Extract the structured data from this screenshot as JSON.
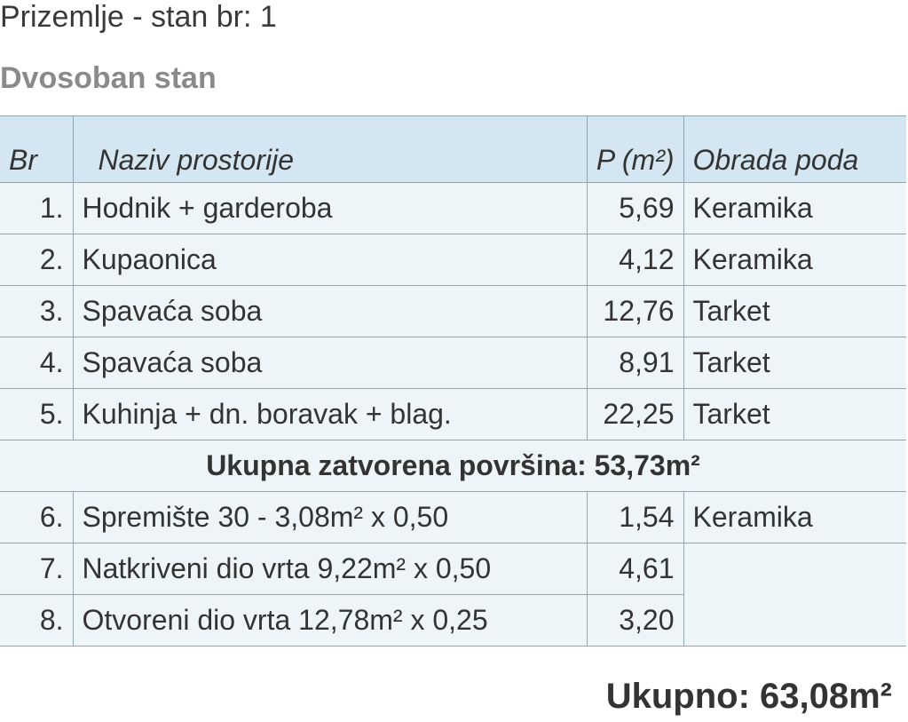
{
  "header": {
    "title": "Prizemlje - stan br: 1",
    "subtitle": "Dvosoban stan"
  },
  "table": {
    "columns": [
      "Br",
      "Naziv prostorije",
      "P (m²)",
      "Obrada poda"
    ],
    "rows": [
      [
        "1.",
        "Hodnik + garderoba",
        "5,69",
        "Keramika"
      ],
      [
        "2.",
        "Kupaonica",
        "4,12",
        "Keramika"
      ],
      [
        "3.",
        "Spavaća soba",
        "12,76",
        "Tarket"
      ],
      [
        "4.",
        "Spavaća soba",
        "8,91",
        "Tarket"
      ],
      [
        "5.",
        "Kuhinja + dn. boravak + blag.",
        "22,25",
        "Tarket"
      ]
    ],
    "subtotal": "Ukupna zatvorena površina: 53,73m²",
    "rows_after": [
      [
        "6.",
        "Spremište 30 - 3,08m² x 0,50",
        "1,54",
        "Keramika"
      ],
      [
        "7.",
        "Natkriveni dio vrta 9,22m² x 0,50",
        "4,61"
      ],
      [
        "8.",
        "Otvoreni dio vrta 12,78m² x 0,25",
        "3,20"
      ]
    ]
  },
  "total": "Ukupno: 63,08m²"
}
